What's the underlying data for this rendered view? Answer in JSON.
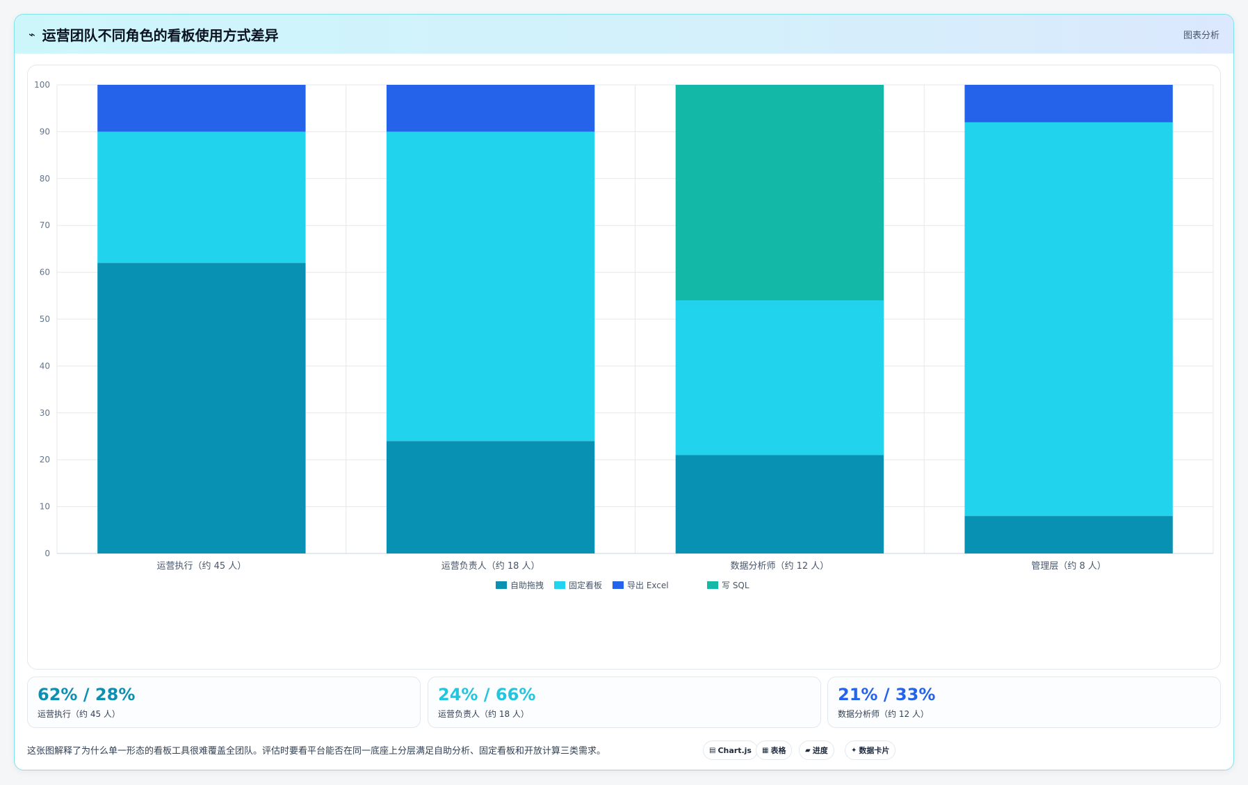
{
  "header": {
    "icon": "trend-line-icon",
    "title": "运营团队不同角色的看板使用方式差异",
    "tag": "图表分析"
  },
  "colors": {
    "self_drag": "#0891b2",
    "fixed_board": "#22d3ee",
    "export_excel": "#2563eb",
    "write_sql": "#14b8a6"
  },
  "chart_data": {
    "type": "bar",
    "stacked": true,
    "categories": [
      "运营执行（约 45 人）",
      "运营负责人（约 18 人）",
      "数据分析师（约 12 人）",
      "管理层（约 8 人）"
    ],
    "series": [
      {
        "name": "自助拖拽",
        "color": "#0891b2",
        "values": [
          62,
          24,
          21,
          8
        ]
      },
      {
        "name": "固定看板",
        "color": "#22d3ee",
        "values": [
          28,
          66,
          33,
          84
        ]
      },
      {
        "name": "导出 Excel",
        "color": "#2563eb",
        "values": [
          10,
          10,
          0,
          8
        ]
      },
      {
        "name": "写 SQL",
        "color": "#14b8a6",
        "values": [
          0,
          0,
          46,
          0
        ]
      }
    ],
    "ylim": [
      0,
      100
    ],
    "yticks": [
      0,
      10,
      20,
      30,
      40,
      50,
      60,
      70,
      80,
      90,
      100
    ],
    "grid": true,
    "legend": "bottom"
  },
  "stats": [
    {
      "value": "62% / 28%",
      "label": "运营执行（约 45 人）",
      "color": "#0e8fb0"
    },
    {
      "value": "24% / 66%",
      "label": "运营负责人（约 18 人）",
      "color": "#22c5dd"
    },
    {
      "value": "21% / 33%",
      "label": "数据分析师（约 12 人）",
      "color": "#2563eb"
    }
  ],
  "footer": {
    "note": "这张图解释了为什么单一形态的看板工具很难覆盖全团队。评估时要看平台能否在同一底座上分层满足自助分析、固定看板和开放计算三类需求。",
    "pills": [
      {
        "icon": "chart-icon",
        "glyph": "▤",
        "label": "Chart.js"
      },
      {
        "icon": "table-icon",
        "glyph": "▦",
        "label": "表格"
      },
      {
        "icon": "progress-icon",
        "glyph": "▰",
        "label": "进度"
      },
      {
        "icon": "sparkle-icon",
        "glyph": "✦",
        "label": "数据卡片"
      }
    ]
  }
}
